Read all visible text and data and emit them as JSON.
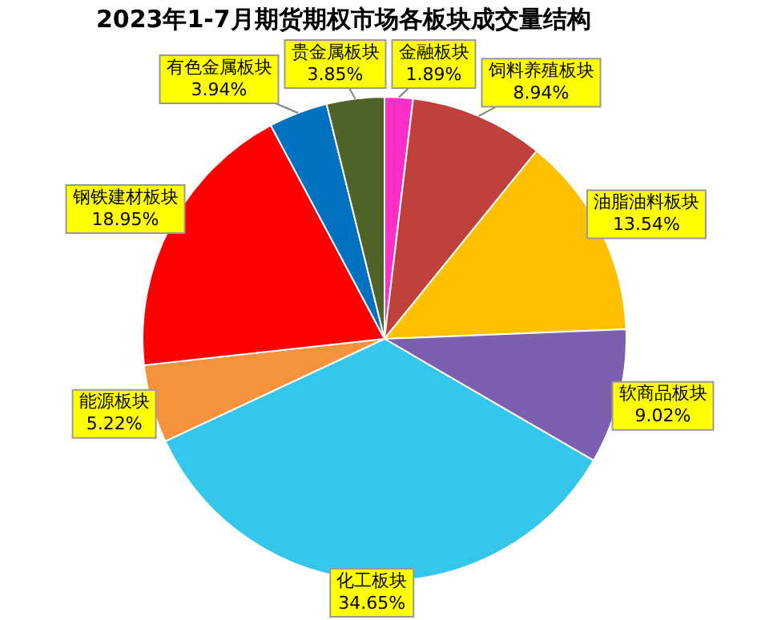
{
  "chart_data": {
    "type": "pie",
    "title": "2023年1-7月期货期权市场各板块成交量结构",
    "categories": [
      "金融板块",
      "饲料养殖板块",
      "油脂油料板块",
      "软商品板块",
      "化工板块",
      "能源板块",
      "钢铁建材板块",
      "有色金属板块",
      "贵金属板块"
    ],
    "values": [
      1.89,
      8.94,
      13.54,
      9.02,
      34.65,
      5.22,
      18.95,
      3.94,
      3.85
    ],
    "value_labels": [
      "1.89%",
      "8.94%",
      "13.54%",
      "9.02%",
      "34.65%",
      "5.22%",
      "18.95%",
      "3.94%",
      "3.85%"
    ],
    "colors": [
      "#ff2fc8",
      "#c0403c",
      "#ffc000",
      "#7c5fae",
      "#35c6ec",
      "#f7923c",
      "#ff0000",
      "#0070c0",
      "#4f6228"
    ],
    "legend": false
  }
}
